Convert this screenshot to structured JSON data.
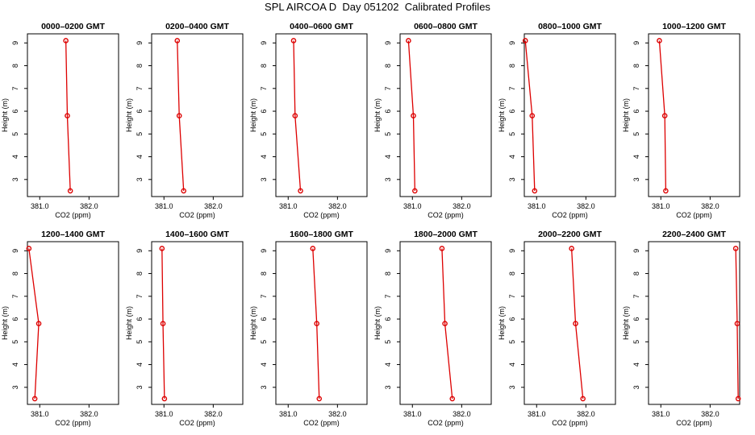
{
  "title": "SPL AIRCOA D  Day 051202  Calibrated Profiles",
  "colors": {
    "profile": "#dd0000",
    "axis": "#000000"
  },
  "chart_data": [
    {
      "type": "line",
      "title": "0000–0200 GMT",
      "xlabel": "CO2 (ppm)",
      "ylabel": "Height (m)",
      "xlim": [
        380.75,
        382.6
      ],
      "ylim": [
        2.25,
        9.4
      ],
      "xticks": [
        381.0,
        382.0
      ],
      "xtick_labels": [
        "381.0",
        "382.0"
      ],
      "yticks": [
        3,
        4,
        5,
        6,
        7,
        8,
        9
      ],
      "series": [
        {
          "x": [
            381.53,
            381.56,
            381.62
          ],
          "y": [
            9.1,
            5.8,
            2.5
          ]
        }
      ]
    },
    {
      "type": "line",
      "title": "0200–0400 GMT",
      "xlabel": "CO2 (ppm)",
      "ylabel": "Height (m)",
      "xlim": [
        380.75,
        382.6
      ],
      "ylim": [
        2.25,
        9.4
      ],
      "xticks": [
        381.0,
        382.0
      ],
      "xtick_labels": [
        "381.0",
        "382.0"
      ],
      "yticks": [
        3,
        4,
        5,
        6,
        7,
        8,
        9
      ],
      "series": [
        {
          "x": [
            381.27,
            381.31,
            381.4
          ],
          "y": [
            9.1,
            5.8,
            2.5
          ]
        }
      ]
    },
    {
      "type": "line",
      "title": "0400–0600 GMT",
      "xlabel": "CO2 (ppm)",
      "ylabel": "Height (m)",
      "xlim": [
        380.75,
        382.6
      ],
      "ylim": [
        2.25,
        9.4
      ],
      "xticks": [
        381.0,
        382.0
      ],
      "xtick_labels": [
        "381.0",
        "382.0"
      ],
      "yticks": [
        3,
        4,
        5,
        6,
        7,
        8,
        9
      ],
      "series": [
        {
          "x": [
            381.11,
            381.14,
            381.25
          ],
          "y": [
            9.1,
            5.8,
            2.5
          ]
        }
      ]
    },
    {
      "type": "line",
      "title": "0600–0800 GMT",
      "xlabel": "CO2 (ppm)",
      "ylabel": "Height (m)",
      "xlim": [
        380.75,
        382.6
      ],
      "ylim": [
        2.25,
        9.4
      ],
      "xticks": [
        381.0,
        382.0
      ],
      "xtick_labels": [
        "381.0",
        "382.0"
      ],
      "yticks": [
        3,
        4,
        5,
        6,
        7,
        8,
        9
      ],
      "series": [
        {
          "x": [
            380.92,
            381.02,
            381.05
          ],
          "y": [
            9.1,
            5.8,
            2.5
          ]
        }
      ]
    },
    {
      "type": "line",
      "title": "0800–1000 GMT",
      "xlabel": "CO2 (ppm)",
      "ylabel": "Height (m)",
      "xlim": [
        380.75,
        382.6
      ],
      "ylim": [
        2.25,
        9.4
      ],
      "xticks": [
        381.0,
        382.0
      ],
      "xtick_labels": [
        "381.0",
        "382.0"
      ],
      "yticks": [
        3,
        4,
        5,
        6,
        7,
        8,
        9
      ],
      "series": [
        {
          "x": [
            380.77,
            380.91,
            380.96
          ],
          "y": [
            9.1,
            5.8,
            2.5
          ]
        }
      ]
    },
    {
      "type": "line",
      "title": "1000–1200 GMT",
      "xlabel": "CO2 (ppm)",
      "ylabel": "Height (m)",
      "xlim": [
        380.75,
        382.6
      ],
      "ylim": [
        2.25,
        9.4
      ],
      "xticks": [
        381.0,
        382.0
      ],
      "xtick_labels": [
        "381.0",
        "382.0"
      ],
      "yticks": [
        3,
        4,
        5,
        6,
        7,
        8,
        9
      ],
      "series": [
        {
          "x": [
            380.97,
            381.08,
            381.1
          ],
          "y": [
            9.1,
            5.8,
            2.5
          ]
        }
      ]
    },
    {
      "type": "line",
      "title": "1200–1400 GMT",
      "xlabel": "CO2 (ppm)",
      "ylabel": "Height (m)",
      "xlim": [
        380.75,
        382.6
      ],
      "ylim": [
        2.25,
        9.4
      ],
      "xticks": [
        381.0,
        382.0
      ],
      "xtick_labels": [
        "381.0",
        "382.0"
      ],
      "yticks": [
        3,
        4,
        5,
        6,
        7,
        8,
        9
      ],
      "series": [
        {
          "x": [
            380.78,
            380.98,
            380.9
          ],
          "y": [
            9.1,
            5.8,
            2.5
          ]
        }
      ]
    },
    {
      "type": "line",
      "title": "1400–1600 GMT",
      "xlabel": "CO2 (ppm)",
      "ylabel": "Height (m)",
      "xlim": [
        380.75,
        382.6
      ],
      "ylim": [
        2.25,
        9.4
      ],
      "xticks": [
        381.0,
        382.0
      ],
      "xtick_labels": [
        "381.0",
        "382.0"
      ],
      "yticks": [
        3,
        4,
        5,
        6,
        7,
        8,
        9
      ],
      "series": [
        {
          "x": [
            380.96,
            380.98,
            381.01
          ],
          "y": [
            9.1,
            5.8,
            2.5
          ]
        }
      ]
    },
    {
      "type": "line",
      "title": "1600–1800 GMT",
      "xlabel": "CO2 (ppm)",
      "ylabel": "Height (m)",
      "xlim": [
        380.75,
        382.6
      ],
      "ylim": [
        2.25,
        9.4
      ],
      "xticks": [
        381.0,
        382.0
      ],
      "xtick_labels": [
        "381.0",
        "382.0"
      ],
      "yticks": [
        3,
        4,
        5,
        6,
        7,
        8,
        9
      ],
      "series": [
        {
          "x": [
            381.5,
            381.58,
            381.63
          ],
          "y": [
            9.1,
            5.8,
            2.5
          ]
        }
      ]
    },
    {
      "type": "line",
      "title": "1800–2000 GMT",
      "xlabel": "CO2 (ppm)",
      "ylabel": "Height (m)",
      "xlim": [
        380.75,
        382.6
      ],
      "ylim": [
        2.25,
        9.4
      ],
      "xticks": [
        381.0,
        382.0
      ],
      "xtick_labels": [
        "381.0",
        "382.0"
      ],
      "yticks": [
        3,
        4,
        5,
        6,
        7,
        8,
        9
      ],
      "series": [
        {
          "x": [
            381.6,
            381.66,
            381.81
          ],
          "y": [
            9.1,
            5.8,
            2.5
          ]
        }
      ]
    },
    {
      "type": "line",
      "title": "2000–2200 GMT",
      "xlabel": "CO2 (ppm)",
      "ylabel": "Height (m)",
      "xlim": [
        380.75,
        382.6
      ],
      "ylim": [
        2.25,
        9.4
      ],
      "xticks": [
        381.0,
        382.0
      ],
      "xtick_labels": [
        "381.0",
        "382.0"
      ],
      "yticks": [
        3,
        4,
        5,
        6,
        7,
        8,
        9
      ],
      "series": [
        {
          "x": [
            381.71,
            381.79,
            381.94
          ],
          "y": [
            9.1,
            5.8,
            2.5
          ]
        }
      ]
    },
    {
      "type": "line",
      "title": "2200–2400 GMT",
      "xlabel": "CO2 (ppm)",
      "ylabel": "Height (m)",
      "xlim": [
        380.75,
        382.6
      ],
      "ylim": [
        2.25,
        9.4
      ],
      "xticks": [
        381.0,
        382.0
      ],
      "xtick_labels": [
        "381.0",
        "382.0"
      ],
      "yticks": [
        3,
        4,
        5,
        6,
        7,
        8,
        9
      ],
      "series": [
        {
          "x": [
            382.52,
            382.55,
            382.57
          ],
          "y": [
            9.1,
            5.8,
            2.5
          ]
        }
      ]
    }
  ]
}
